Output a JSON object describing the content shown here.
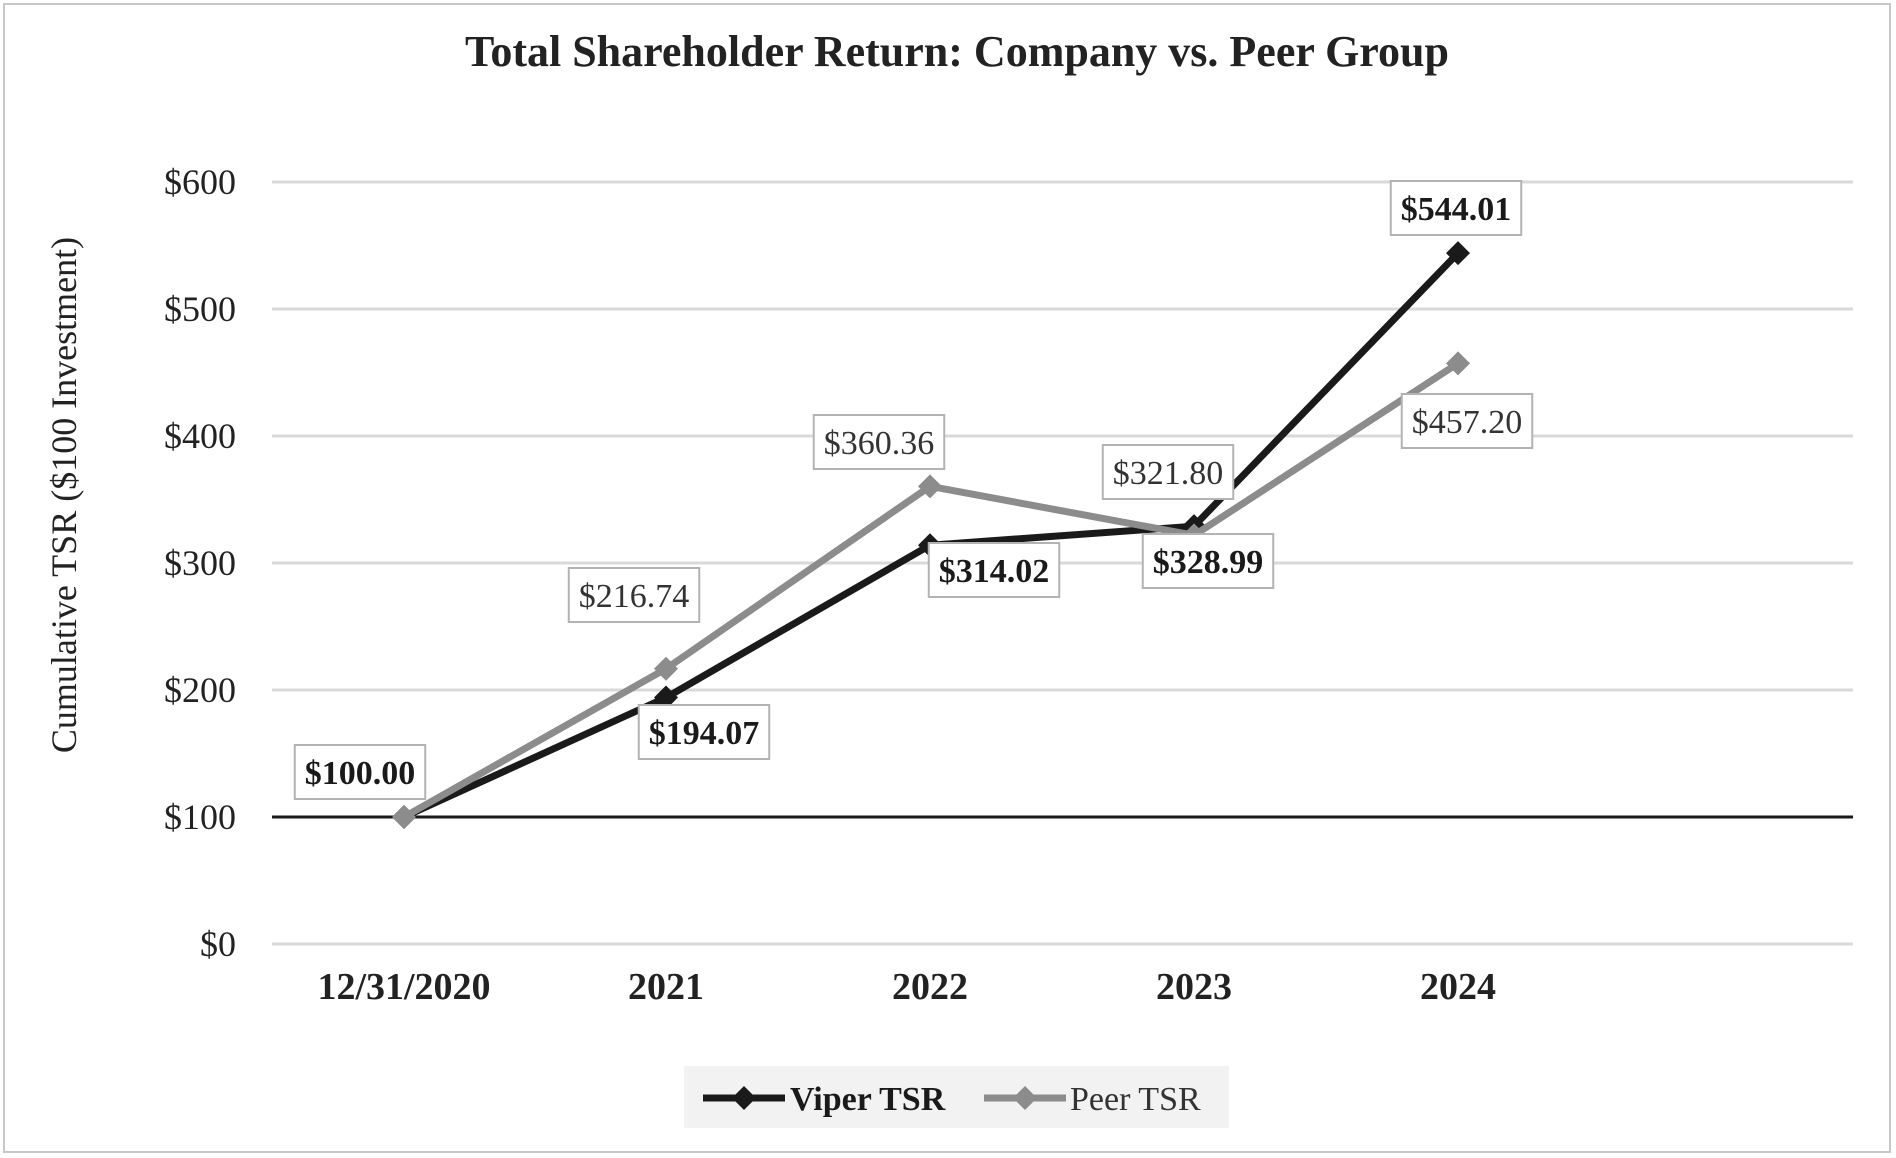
{
  "chart_data": {
    "type": "line",
    "title": "Total Shareholder Return: Company vs. Peer Group",
    "xlabel": "",
    "ylabel": "Cumulative TSR ($100 Investment)",
    "categories": [
      "12/31/2020",
      "2021",
      "2022",
      "2023",
      "2024"
    ],
    "ylim": [
      0,
      600
    ],
    "yticks": [
      0,
      100,
      200,
      300,
      400,
      500,
      600
    ],
    "ytick_labels": [
      "$0",
      "$100",
      "$200",
      "$300",
      "$400",
      "$500",
      "$600"
    ],
    "grid": true,
    "baseline_value": 100,
    "legend_position": "bottom-center",
    "series": [
      {
        "name": "Viper TSR",
        "values": [
          100.0,
          194.07,
          314.02,
          328.99,
          544.01
        ],
        "labels": [
          "$100.00",
          "$194.07",
          "$314.02",
          "$328.99",
          "$544.01"
        ],
        "color": "#1a1a1a"
      },
      {
        "name": "Peer TSR",
        "values": [
          100.0,
          216.74,
          360.36,
          321.8,
          457.2
        ],
        "labels": [
          "",
          "$216.74",
          "$360.36",
          "$321.80",
          "$457.20"
        ],
        "color": "#8c8c8c"
      }
    ]
  }
}
